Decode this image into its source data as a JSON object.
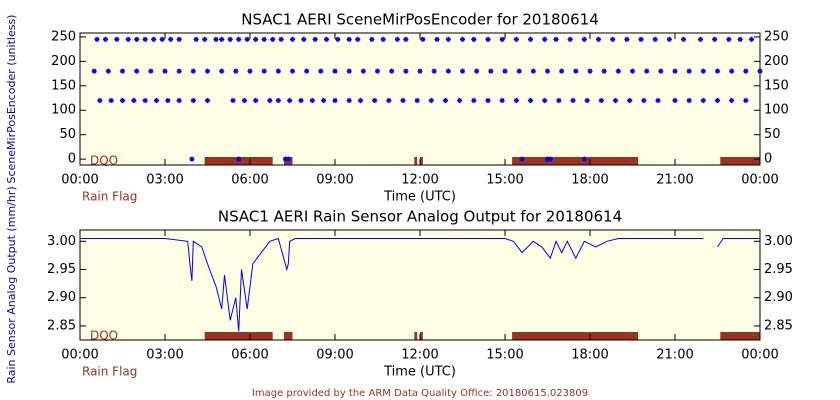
{
  "chart_data": [
    {
      "type": "scatter",
      "title": "NSAC1 AERI SceneMirPosEncoder for 20180614",
      "xlabel": "Time (UTC)",
      "ylabel": "SceneMirPosEncoder (unitless)",
      "flag_label": "DQO",
      "flag_legend": "Rain Flag",
      "flag_color": "#993322",
      "background": "#fffde3",
      "xlim": [
        0,
        24
      ],
      "xticks": [
        {
          "value": 0,
          "label": "00:00"
        },
        {
          "value": 3,
          "label": "03:00"
        },
        {
          "value": 6,
          "label": "06:00"
        },
        {
          "value": 9,
          "label": "09:00"
        },
        {
          "value": 12,
          "label": "12:00"
        },
        {
          "value": 15,
          "label": "15:00"
        },
        {
          "value": 18,
          "label": "18:00"
        },
        {
          "value": 21,
          "label": "21:00"
        },
        {
          "value": 24,
          "label": "00:00"
        }
      ],
      "ylim": [
        -12,
        258
      ],
      "yticks": [
        0,
        50,
        100,
        150,
        200,
        250
      ],
      "y2lim": [
        -12,
        258
      ],
      "y2ticks": [
        0,
        50,
        100,
        150,
        200,
        250
      ],
      "rain_flag": [
        [
          4.4,
          6.8
        ],
        [
          7.2,
          7.5
        ],
        [
          11.8,
          11.9
        ],
        [
          12.0,
          12.1
        ],
        [
          15.25,
          19.7
        ],
        [
          22.6,
          24
        ]
      ],
      "series": [
        {
          "color": "#0000ff",
          "x": [
            0.6,
            0.9,
            1.3,
            1.7,
            2.0,
            2.3,
            2.6,
            2.9,
            3.2,
            3.5,
            4.1,
            4.4,
            4.8,
            5.0,
            5.3,
            5.6,
            5.9,
            6.2,
            6.5,
            6.8,
            7.1,
            7.5,
            7.9,
            8.3,
            8.7,
            9.1,
            9.5,
            9.8,
            10.3,
            10.7,
            11.2,
            11.5,
            12.1,
            12.6,
            13.0,
            13.5,
            13.9,
            14.4,
            14.9,
            15.4,
            15.9,
            16.4,
            16.8,
            17.3,
            17.8,
            18.3,
            18.8,
            19.3,
            19.8,
            20.3,
            20.8,
            21.3,
            21.9,
            22.4,
            22.9,
            23.3,
            23.7
          ],
          "values": [
            245,
            245,
            245,
            245,
            245,
            245,
            245,
            245,
            245,
            245,
            245,
            245,
            245,
            245,
            245,
            245,
            245,
            245,
            245,
            245,
            245,
            245,
            245,
            245,
            245,
            245,
            245,
            245,
            245,
            245,
            245,
            245,
            245,
            245,
            245,
            245,
            245,
            245,
            245,
            245,
            245,
            245,
            245,
            245,
            245,
            245,
            245,
            245,
            245,
            245,
            245,
            245,
            245,
            245,
            245,
            245,
            245
          ]
        },
        {
          "color": "#0000ff",
          "x": [
            0.5,
            1,
            1.5,
            2,
            2.5,
            3,
            3.5,
            4,
            4.5,
            5,
            5.5,
            6,
            6.5,
            7,
            7.5,
            8,
            8.5,
            9,
            9.5,
            10,
            10.5,
            11,
            11.5,
            12,
            12.5,
            13,
            13.5,
            14,
            14.5,
            15,
            15.5,
            16,
            16.5,
            17,
            17.5,
            18,
            18.5,
            19,
            19.5,
            20,
            20.5,
            21,
            21.5,
            22,
            22.5,
            23,
            23.5,
            24
          ],
          "values": [
            180,
            180,
            180,
            180,
            180,
            180,
            180,
            180,
            180,
            180,
            180,
            180,
            180,
            180,
            180,
            180,
            180,
            180,
            180,
            180,
            180,
            180,
            180,
            180,
            180,
            180,
            180,
            180,
            180,
            180,
            180,
            180,
            180,
            180,
            180,
            180,
            180,
            180,
            180,
            180,
            180,
            180,
            180,
            180,
            180,
            180,
            180,
            180
          ]
        },
        {
          "color": "#0000ff",
          "x": [
            0.7,
            1.1,
            1.5,
            1.9,
            2.3,
            2.7,
            3.1,
            3.5,
            4.0,
            4.5,
            5.4,
            5.8,
            6.2,
            6.7,
            7.0,
            7.4,
            7.8,
            8.2,
            8.6,
            9.0,
            9.5,
            9.9,
            10.4,
            10.9,
            11.4,
            11.9,
            12.4,
            12.9,
            13.4,
            13.9,
            14.4,
            14.9,
            15.4,
            15.9,
            16.4,
            16.9,
            17.4,
            17.9,
            18.4,
            18.9,
            19.4,
            19.9,
            20.4,
            21.0,
            21.5,
            22.0,
            22.5,
            23.0,
            23.5
          ],
          "values": [
            120,
            120,
            120,
            120,
            120,
            120,
            120,
            120,
            120,
            120,
            120,
            120,
            120,
            120,
            120,
            120,
            120,
            120,
            120,
            120,
            120,
            120,
            120,
            120,
            120,
            120,
            120,
            120,
            120,
            120,
            120,
            120,
            120,
            120,
            120,
            120,
            120,
            120,
            120,
            120,
            120,
            120,
            120,
            120,
            120,
            120,
            120,
            120,
            120
          ]
        },
        {
          "color": "#0000ff",
          "x": [
            3.95,
            5.6,
            7.25,
            7.35,
            15.6,
            16.5,
            16.6,
            17.8
          ],
          "values": [
            0,
            0,
            0,
            0,
            0,
            0,
            0,
            0
          ]
        }
      ]
    },
    {
      "type": "line",
      "title": "NSAC1 AERI Rain Sensor Analog Output for 20180614",
      "xlabel": "Time (UTC)",
      "ylabel": "Rain Sensor Analog Output (mm/hr)",
      "flag_label": "DQO",
      "flag_legend": "Rain Flag",
      "flag_color": "#993322",
      "background": "#fffde3",
      "xlim": [
        0,
        24
      ],
      "xticks": [
        {
          "value": 0,
          "label": "00:00"
        },
        {
          "value": 3,
          "label": "03:00"
        },
        {
          "value": 6,
          "label": "06:00"
        },
        {
          "value": 9,
          "label": "09:00"
        },
        {
          "value": 12,
          "label": "12:00"
        },
        {
          "value": 15,
          "label": "15:00"
        },
        {
          "value": 18,
          "label": "18:00"
        },
        {
          "value": 21,
          "label": "21:00"
        },
        {
          "value": 24,
          "label": "00:00"
        }
      ],
      "ylim": [
        2.825,
        3.02
      ],
      "yticks": [
        {
          "value": 2.85,
          "label": "2.85"
        },
        {
          "value": 2.9,
          "label": "2.90"
        },
        {
          "value": 2.95,
          "label": "2.95"
        },
        {
          "value": 3.0,
          "label": "3.00"
        }
      ],
      "y2lim": [
        2.825,
        3.02
      ],
      "y2ticks": [
        {
          "value": 2.85,
          "label": "2.85"
        },
        {
          "value": 2.9,
          "label": "2.90"
        },
        {
          "value": 2.95,
          "label": "2.95"
        },
        {
          "value": 3.0,
          "label": "3.00"
        }
      ],
      "rain_flag": [
        [
          4.4,
          6.8
        ],
        [
          7.2,
          7.5
        ],
        [
          11.8,
          11.9
        ],
        [
          12.0,
          12.1
        ],
        [
          15.25,
          19.7
        ],
        [
          22.6,
          24
        ]
      ],
      "series": [
        {
          "color": "#0000ff",
          "x": [
            0,
            1,
            2,
            3,
            3.8,
            3.9,
            3.95,
            4.0,
            4.3,
            4.5,
            4.8,
            5.0,
            5.1,
            5.3,
            5.5,
            5.6,
            5.7,
            5.9,
            6.1,
            6.4,
            6.7,
            7.0,
            7.3,
            7.35,
            7.4,
            7.6,
            8,
            9,
            10,
            11,
            12,
            13,
            14,
            15,
            15.3,
            15.6,
            16,
            16.3,
            16.6,
            16.8,
            17.0,
            17.2,
            17.5,
            17.8,
            18.2,
            18.6,
            19,
            20,
            21,
            22,
            22.2,
            22.5,
            22.7,
            23,
            24
          ],
          "values": [
            3.005,
            3.005,
            3.005,
            3.005,
            3.0,
            2.95,
            2.93,
            3.0,
            2.99,
            2.96,
            2.92,
            2.88,
            2.94,
            2.86,
            2.9,
            2.84,
            2.95,
            2.88,
            2.96,
            2.98,
            3.0,
            3.005,
            2.95,
            2.96,
            3.0,
            3.005,
            3.005,
            3.005,
            3.005,
            3.005,
            3.005,
            3.005,
            3.005,
            3.005,
            3.0,
            2.98,
            3.0,
            2.99,
            2.97,
            3.0,
            2.98,
            3.0,
            2.97,
            3.0,
            2.99,
            3.0,
            3.005,
            3.005,
            3.005,
            3.005,
            null,
            2.99,
            3.005,
            3.005,
            3.005
          ]
        }
      ]
    }
  ],
  "footer": "Image provided by the ARM Data Quality Office: 20180615.023809"
}
